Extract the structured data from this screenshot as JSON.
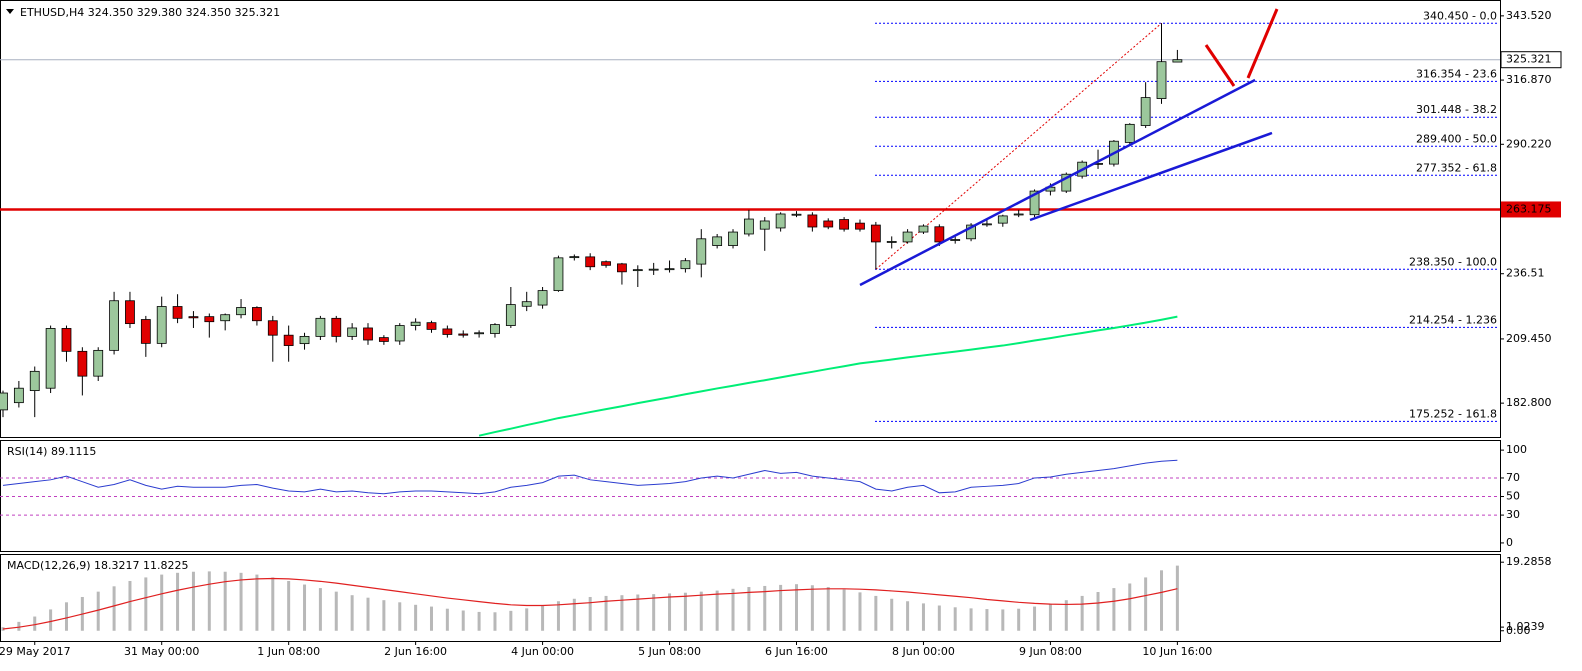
{
  "chart_data": [
    {
      "type": "candlestick",
      "title": "ETHUSD,H4 324.350 329.380 324.350 325.321",
      "categories": [
        null,
        null,
        "29 May 2017",
        null,
        null,
        null,
        null,
        null,
        null,
        null,
        "31 May 00:00",
        null,
        null,
        null,
        null,
        null,
        null,
        null,
        "1 Jun 08:00",
        null,
        null,
        null,
        null,
        null,
        null,
        null,
        "2 Jun 16:00",
        null,
        null,
        null,
        null,
        null,
        null,
        null,
        "4 Jun 00:00",
        null,
        null,
        null,
        null,
        null,
        null,
        null,
        "5 Jun 08:00",
        null,
        null,
        null,
        null,
        null,
        null,
        null,
        "6 Jun 16:00",
        null,
        null,
        null,
        null,
        null,
        null,
        null,
        "8 Jun 00:00",
        null,
        null,
        null,
        null,
        null,
        null,
        null,
        "9 Jun 08:00",
        null,
        null,
        null,
        null,
        null,
        null,
        null,
        "10 Jun 16:00"
      ],
      "open": [
        180,
        183,
        188,
        189,
        213.8,
        204.3,
        194,
        204.7,
        225.3,
        217.5,
        207.6,
        222.9,
        218.7,
        218.7,
        217,
        219.5,
        222.5,
        217,
        211,
        207.5,
        210.5,
        218,
        210.5,
        214,
        210,
        208.6,
        215,
        216.2,
        213.6,
        211.5,
        211.7,
        211.7,
        215,
        223,
        223.5,
        229.5,
        243.5,
        243.5,
        241.5,
        240.6,
        238,
        238,
        238.2,
        238.6,
        240.5,
        248.2,
        248.2,
        253,
        255,
        255.5,
        261,
        260.9,
        258.4,
        259,
        257.5,
        256.7,
        249.7,
        249.7,
        253.8,
        256,
        250.5,
        251,
        257,
        257.5,
        261,
        261,
        270.8,
        270.8,
        277,
        282,
        282,
        291,
        298,
        309.2,
        324.35
      ],
      "high": [
        188,
        192,
        198,
        215,
        215,
        206,
        206,
        229,
        229,
        219,
        227,
        228,
        221,
        220,
        220,
        226,
        223,
        219,
        215,
        212,
        219,
        219,
        216,
        216,
        211,
        216,
        218,
        217,
        215,
        213,
        213,
        216,
        231,
        229,
        231,
        244,
        244.5,
        245,
        242,
        241,
        240,
        241,
        242,
        243,
        255,
        253,
        255,
        263,
        260,
        262,
        262.5,
        262,
        259.5,
        260,
        259,
        258,
        252,
        255,
        257,
        257,
        252,
        257.5,
        259,
        261,
        263,
        271.5,
        274,
        278.5,
        283.5,
        288,
        292,
        299,
        316,
        340.45,
        329.38
      ],
      "low": [
        177,
        181,
        177,
        187,
        200,
        186,
        192,
        203,
        214,
        202,
        206,
        216,
        214,
        210,
        213,
        218,
        215,
        200,
        200,
        205,
        209,
        208,
        209,
        207,
        207,
        207,
        213,
        212,
        210,
        210,
        210,
        210,
        214,
        221,
        222,
        229,
        242,
        238,
        239,
        232,
        231,
        236,
        237,
        237,
        235,
        247,
        247,
        252,
        246,
        254,
        260,
        254,
        255,
        254,
        254,
        238.35,
        247,
        249,
        253,
        248,
        249,
        250,
        256,
        256,
        260,
        260,
        269,
        270,
        276,
        280,
        281,
        290,
        297,
        307,
        324.35
      ],
      "close": [
        187,
        189,
        196,
        213.8,
        204.3,
        194,
        204.7,
        225.3,
        215.8,
        207.6,
        222.9,
        218,
        218.2,
        216.6,
        219.5,
        222.5,
        217,
        211,
        206.7,
        210.5,
        218,
        210.5,
        214,
        209,
        208.4,
        215,
        216.4,
        213.4,
        211.3,
        211,
        212,
        215.4,
        223.7,
        224.9,
        229.5,
        243.1,
        243.6,
        239.4,
        240,
        237.3,
        238.2,
        238.4,
        238.6,
        241.9,
        251,
        251.8,
        253.8,
        259.2,
        258.4,
        261.3,
        261.2,
        255.9,
        255.9,
        255,
        255,
        249.7,
        249.9,
        253.8,
        256.3,
        249.7,
        250.7,
        256.7,
        257.2,
        260.5,
        261.3,
        270.8,
        272.4,
        277.8,
        282.8,
        282.3,
        291.5,
        298.5,
        309.6,
        324.5,
        325.321
      ],
      "up_color": "#9cc79c",
      "down_color": "#e00000",
      "ylim": [
        168.75,
        350.1
      ],
      "yticks": [
        {
          "value": 343.52,
          "label": "343.520"
        },
        {
          "value": 316.87,
          "label": "316.870"
        },
        {
          "value": 290.22,
          "label": "290.220"
        },
        236.51,
        {
          "value": 209.45,
          "label": "209.450"
        },
        {
          "value": 182.8,
          "label": "182.800"
        }
      ],
      "moving_average": {
        "color": "#00ee76",
        "values": [
          null,
          null,
          null,
          null,
          null,
          null,
          null,
          null,
          null,
          null,
          null,
          null,
          null,
          null,
          null,
          null,
          null,
          null,
          null,
          null,
          null,
          null,
          null,
          null,
          null,
          null,
          null,
          null,
          null,
          null,
          169.3,
          170.8,
          172.2,
          173.7,
          175.1,
          176.6,
          177.8,
          179.1,
          180.3,
          181.5,
          182.8,
          184.0,
          185.2,
          186.5,
          187.7,
          188.9,
          190.0,
          191.2,
          192.3,
          193.5,
          194.7,
          195.8,
          197.0,
          198.1,
          199.3,
          200.1,
          200.9,
          201.8,
          202.6,
          203.4,
          204.2,
          205.0,
          205.9,
          206.7,
          207.7,
          208.8,
          209.8,
          210.9,
          211.9,
          213.0,
          214.0,
          215.1,
          216.2,
          217.4,
          218.7
        ]
      },
      "support": {
        "value": 263.175,
        "color": "#e00000"
      },
      "last_price": 325.321,
      "fib_color": "#0000ff",
      "fib_levels": [
        {
          "value": 340.45,
          "label": "340.450 - 0.0"
        },
        {
          "value": 316.354,
          "label": "316.354 - 23.6"
        },
        {
          "value": 301.448,
          "label": "301.448 - 38.2"
        },
        {
          "value": 289.4,
          "label": "289.400 - 50.0"
        },
        {
          "value": 277.352,
          "label": "277.352 - 61.8"
        },
        {
          "value": 238.35,
          "label": "238.350 - 100.0"
        },
        {
          "value": 214.254,
          "label": "214.254 - 1.236"
        },
        {
          "value": 175.252,
          "label": "175.252 - 161.8"
        }
      ]
    },
    {
      "type": "line",
      "title": "RSI(14) 89.1115",
      "color": "#2b3ccf",
      "values": [
        62,
        64,
        66,
        68,
        72,
        66,
        60,
        63,
        68,
        62,
        58,
        61,
        60,
        60,
        60,
        62,
        63,
        59,
        56,
        55,
        58,
        55,
        56,
        54,
        53,
        55,
        56,
        56,
        55,
        54,
        53,
        55,
        60,
        62,
        65,
        72,
        73,
        68,
        66,
        64,
        62,
        63,
        64,
        66,
        70,
        72,
        70,
        74,
        78,
        75,
        76,
        72,
        70,
        68,
        66,
        58,
        56,
        60,
        62,
        54,
        55,
        60,
        61,
        62,
        64,
        70,
        71,
        74,
        76,
        78,
        80,
        83,
        86,
        88,
        89.1115
      ],
      "ylim": [
        -8.7,
        110.9
      ],
      "yticks": [
        100,
        70,
        50,
        30,
        0
      ],
      "levels": [
        70,
        50,
        30
      ],
      "level_color": "#c040c0"
    },
    {
      "type": "bar",
      "title": "MACD(12,26,9) 18.3217 11.8225",
      "color": "#b8b8b8",
      "values": [
        1,
        2.5,
        4,
        6,
        8,
        9.5,
        11,
        12.5,
        14,
        15,
        15.8,
        16.3,
        16.6,
        16.7,
        16.6,
        16.3,
        15.8,
        15,
        14,
        13,
        12,
        11,
        10,
        9.3,
        8.6,
        8,
        7.3,
        6.8,
        6.2,
        5.7,
        5.3,
        5.2,
        5.6,
        6.3,
        7.2,
        8.3,
        9,
        9.5,
        9.8,
        10,
        10.2,
        10.3,
        10.5,
        10.7,
        11,
        11.3,
        11.8,
        12.3,
        12.6,
        12.9,
        13.1,
        12.8,
        12.3,
        11.6,
        10.8,
        9.8,
        9,
        8.3,
        7.7,
        7.1,
        6.6,
        6.3,
        6.1,
        6,
        6.2,
        6.8,
        7.6,
        8.6,
        9.8,
        10.9,
        12,
        13.3,
        15,
        17,
        18.3217
      ],
      "signal": {
        "color": "#e02020",
        "values": [
          0.5,
          1,
          1.7,
          2.6,
          3.6,
          4.7,
          5.8,
          7,
          8.2,
          9.3,
          10.4,
          11.4,
          12.3,
          13.1,
          13.8,
          14.3,
          14.6,
          14.7,
          14.6,
          14.3,
          13.9,
          13.4,
          12.8,
          12.2,
          11.6,
          11,
          10.4,
          9.8,
          9.2,
          8.7,
          8.2,
          7.7,
          7.3,
          7.1,
          7.1,
          7.3,
          7.6,
          7.9,
          8.3,
          8.6,
          8.9,
          9.2,
          9.5,
          9.7,
          10,
          10.3,
          10.5,
          10.8,
          11,
          11.3,
          11.5,
          11.7,
          11.8,
          11.8,
          11.7,
          11.5,
          11.2,
          10.9,
          10.5,
          10.1,
          9.7,
          9.3,
          8.8,
          8.4,
          8,
          7.7,
          7.5,
          7.4,
          7.5,
          7.8,
          8.3,
          9,
          9.9,
          10.8,
          11.8225
        ]
      },
      "ylim": [
        -2.88,
        21.59
      ],
      "yticks": [
        19.2858,
        {
          "value": 1.0239,
          "label": "1.0239"
        },
        {
          "value": 0,
          "label": "0.00"
        }
      ]
    }
  ]
}
